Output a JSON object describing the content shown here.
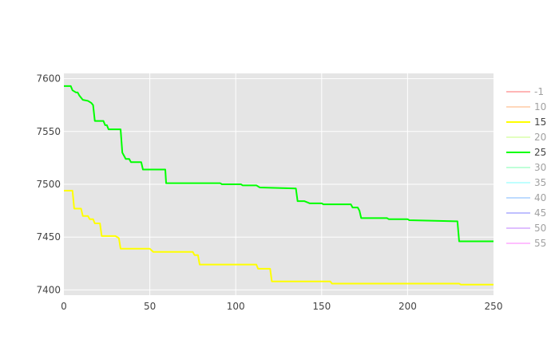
{
  "chart_data": {
    "type": "line",
    "title": "",
    "xlabel": "",
    "ylabel": "",
    "xlim": [
      0,
      250
    ],
    "ylim": [
      7395,
      7605
    ],
    "x_ticks": [
      0,
      50,
      100,
      150,
      200,
      250
    ],
    "y_ticks": [
      7400,
      7450,
      7500,
      7550,
      7600
    ],
    "grid": true,
    "legend_position": "right",
    "series": [
      {
        "name": "-1",
        "color": "#ff6f6f",
        "visible": false,
        "points": []
      },
      {
        "name": "10",
        "color": "#ffb27a",
        "visible": false,
        "points": []
      },
      {
        "name": "15",
        "color": "#ffff00",
        "visible": true,
        "points": [
          [
            0,
            7494
          ],
          [
            5,
            7494
          ],
          [
            6,
            7477
          ],
          [
            10,
            7477
          ],
          [
            11,
            7470
          ],
          [
            14,
            7470
          ],
          [
            15,
            7467
          ],
          [
            17,
            7467
          ],
          [
            18,
            7463
          ],
          [
            21,
            7463
          ],
          [
            22,
            7451
          ],
          [
            30,
            7451
          ],
          [
            32,
            7449
          ],
          [
            33,
            7439
          ],
          [
            50,
            7439
          ],
          [
            52,
            7436
          ],
          [
            75,
            7436
          ],
          [
            76,
            7433
          ],
          [
            78,
            7433
          ],
          [
            79,
            7424
          ],
          [
            112,
            7424
          ],
          [
            113,
            7420
          ],
          [
            120,
            7420
          ],
          [
            121,
            7408
          ],
          [
            155,
            7408
          ],
          [
            156,
            7406
          ],
          [
            230,
            7406
          ],
          [
            231,
            7405
          ],
          [
            250,
            7405
          ]
        ]
      },
      {
        "name": "20",
        "color": "#c8ff80",
        "visible": false,
        "points": []
      },
      {
        "name": "25",
        "color": "#00ff00",
        "visible": true,
        "points": [
          [
            0,
            7593
          ],
          [
            4,
            7593
          ],
          [
            5,
            7589
          ],
          [
            7,
            7587
          ],
          [
            8,
            7587
          ],
          [
            9,
            7584
          ],
          [
            11,
            7580
          ],
          [
            14,
            7579
          ],
          [
            16,
            7577
          ],
          [
            17,
            7575
          ],
          [
            18,
            7560
          ],
          [
            23,
            7560
          ],
          [
            24,
            7556
          ],
          [
            25,
            7556
          ],
          [
            26,
            7552
          ],
          [
            33,
            7552
          ],
          [
            34,
            7530
          ],
          [
            35,
            7527
          ],
          [
            36,
            7524
          ],
          [
            38,
            7524
          ],
          [
            39,
            7521
          ],
          [
            45,
            7521
          ],
          [
            46,
            7514
          ],
          [
            59,
            7514
          ],
          [
            59.5,
            7501
          ],
          [
            91,
            7501
          ],
          [
            92,
            7500
          ],
          [
            103,
            7500
          ],
          [
            104,
            7499
          ],
          [
            112,
            7499
          ],
          [
            114,
            7497
          ],
          [
            135,
            7496
          ],
          [
            136,
            7484
          ],
          [
            140,
            7484
          ],
          [
            143,
            7482
          ],
          [
            150,
            7482
          ],
          [
            151,
            7481
          ],
          [
            167,
            7481
          ],
          [
            168,
            7478
          ],
          [
            171,
            7478
          ],
          [
            172,
            7475
          ],
          [
            173,
            7468
          ],
          [
            188,
            7468
          ],
          [
            189,
            7467
          ],
          [
            200,
            7467
          ],
          [
            201,
            7466
          ],
          [
            228,
            7465
          ],
          [
            229,
            7465
          ],
          [
            230,
            7446
          ],
          [
            250,
            7446
          ]
        ]
      },
      {
        "name": "30",
        "color": "#7fffb2",
        "visible": false,
        "points": []
      },
      {
        "name": "35",
        "color": "#80ffff",
        "visible": false,
        "points": []
      },
      {
        "name": "40",
        "color": "#7fb8ff",
        "visible": false,
        "points": []
      },
      {
        "name": "45",
        "color": "#8080ff",
        "visible": false,
        "points": []
      },
      {
        "name": "50",
        "color": "#c080ff",
        "visible": false,
        "points": []
      },
      {
        "name": "55",
        "color": "#ff80ff",
        "visible": false,
        "points": []
      }
    ]
  }
}
